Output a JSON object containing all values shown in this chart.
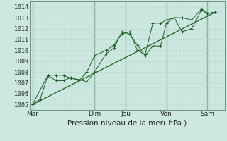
{
  "xlabel": "Pression niveau de la mer( hPa )",
  "background_color": "#cce8e0",
  "grid_color_major": "#a8c8c0",
  "grid_color_minor": "#b8d8d0",
  "line_color": "#1a5e20",
  "vline_color": "#4a8a5a",
  "ylim": [
    1004.5,
    1014.5
  ],
  "xlim": [
    -0.15,
    9.9
  ],
  "yticks": [
    1005,
    1006,
    1007,
    1008,
    1009,
    1010,
    1011,
    1012,
    1013,
    1014
  ],
  "day_labels": [
    "Mar",
    "Dim",
    "Jeu",
    "Ven",
    "Sam"
  ],
  "day_positions": [
    0.0,
    3.2,
    4.8,
    6.9,
    9.0
  ],
  "series1_x": [
    0.0,
    0.4,
    0.8,
    1.2,
    1.6,
    2.0,
    2.4,
    2.8,
    3.2,
    3.8,
    4.2,
    4.6,
    5.0,
    5.4,
    5.8,
    6.2,
    6.6,
    6.9,
    7.3,
    7.7,
    8.2,
    8.7,
    9.0,
    9.4
  ],
  "series1_y": [
    1005.0,
    1005.5,
    1007.7,
    1007.7,
    1007.7,
    1007.4,
    1007.3,
    1007.1,
    1008.0,
    1009.7,
    1010.2,
    1011.7,
    1011.5,
    1010.5,
    1009.5,
    1010.4,
    1010.4,
    1012.5,
    1013.0,
    1013.0,
    1012.8,
    1013.8,
    1013.4,
    1013.5
  ],
  "series2_x": [
    0.0,
    0.8,
    1.2,
    1.6,
    2.0,
    2.4,
    2.8,
    3.2,
    3.8,
    4.2,
    4.6,
    5.0,
    5.4,
    5.8,
    6.2,
    6.6,
    6.9,
    7.3,
    7.7,
    8.2,
    8.7,
    9.0,
    9.4
  ],
  "series2_y": [
    1005.0,
    1007.7,
    1007.2,
    1007.2,
    1007.5,
    1007.2,
    1008.0,
    1009.5,
    1010.0,
    1010.5,
    1011.5,
    1011.7,
    1010.0,
    1009.6,
    1012.5,
    1012.5,
    1012.8,
    1013.0,
    1011.7,
    1012.0,
    1013.7,
    1013.4,
    1013.5
  ],
  "trend_x": [
    0.0,
    9.4
  ],
  "trend_y": [
    1005.0,
    1013.5
  ],
  "xlabel_fontsize": 7.5,
  "tick_fontsize": 6.0,
  "day_fontsize": 6.5
}
